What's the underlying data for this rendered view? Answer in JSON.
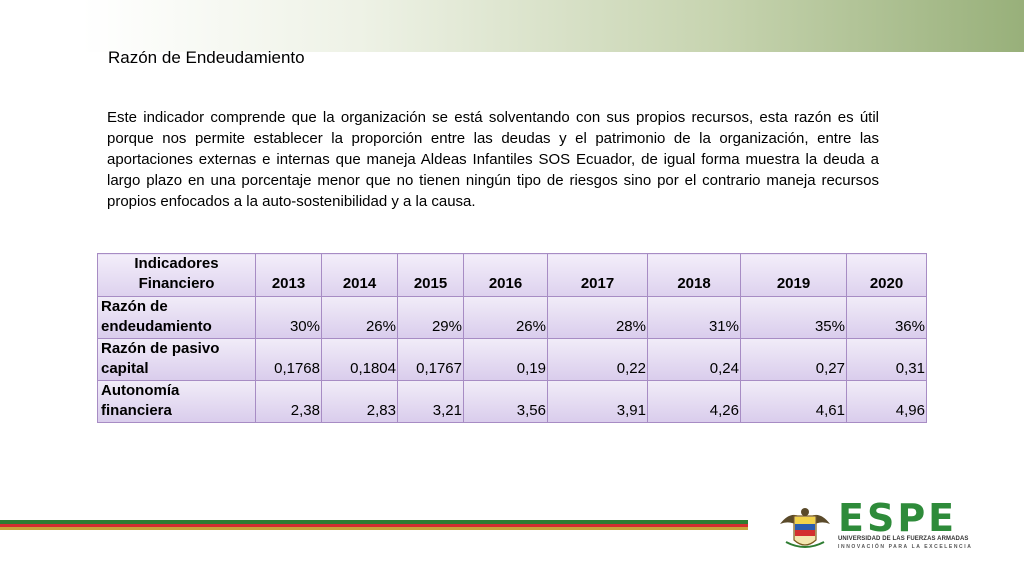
{
  "title": "Razón de Endeudamiento",
  "paragraph": "Este indicador comprende que la organización se está solventando con sus propios recursos, esta razón es útil porque nos permite establecer la  proporción entre las deudas y el patrimonio de la organización, entre las aportaciones externas e internas que maneja Aldeas Infantiles SOS Ecuador, de igual forma muestra la deuda a largo plazo en una porcentaje menor que no tienen ningún tipo de riesgos sino por el contrario maneja recursos propios enfocados a la auto-sostenibilidad y a la causa.",
  "table": {
    "header": [
      "Indicadores Financiero",
      "2013",
      "2014",
      "2015",
      "2016",
      "2017",
      "2018",
      "2019",
      "2020"
    ],
    "rows": [
      {
        "label": "Razón de endeudamiento",
        "values": [
          "30%",
          "26%",
          "29%",
          "26%",
          "28%",
          "31%",
          "35%",
          "36%"
        ]
      },
      {
        "label": "Razón de pasivo capital",
        "values": [
          "0,1768",
          "0,1804",
          "0,1767",
          "0,19",
          "0,22",
          "0,24",
          "0,27",
          "0,31"
        ]
      },
      {
        "label": "Autonomía financiera",
        "values": [
          "2,38",
          "2,83",
          "3,21",
          "3,56",
          "3,91",
          "4,26",
          "4,61",
          "4,96"
        ]
      }
    ]
  },
  "logo": {
    "word": "ESPE",
    "subtitle": "UNIVERSIDAD DE LAS FUERZAS ARMADAS",
    "tagline": "INNOVACIÓN PARA LA EXCELENCIA",
    "brand_color": "#2e8b3a"
  },
  "colors": {
    "table_border": "#a78cc4",
    "table_fill": "#ddd1ee",
    "header_band": "#98b07a"
  }
}
